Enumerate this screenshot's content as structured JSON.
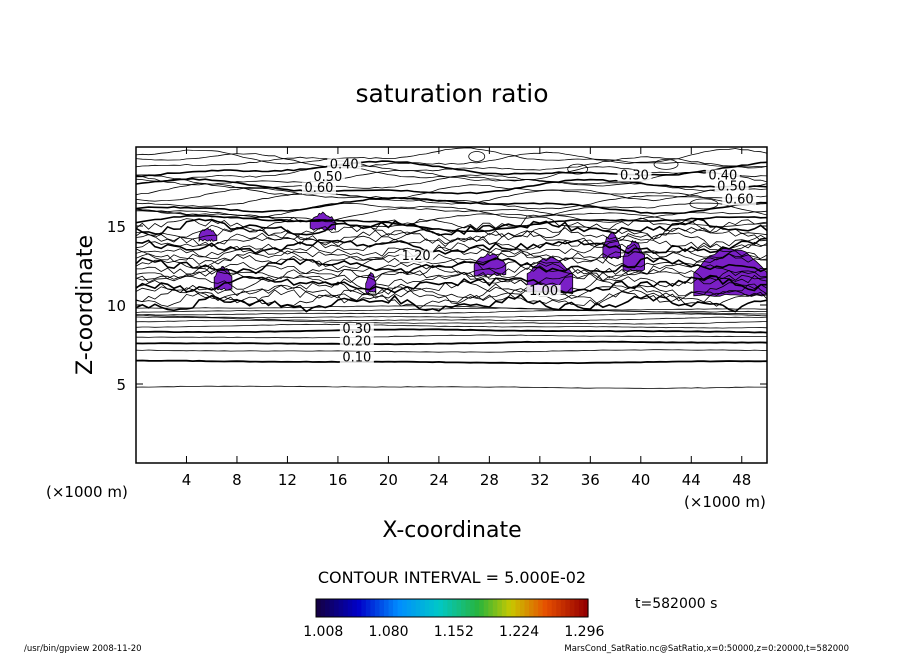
{
  "chart_data": {
    "type": "contour",
    "title": "saturation ratio",
    "xlabel": "X-coordinate",
    "ylabel": "Z-coordinate",
    "x_unit": "(×1000 m)",
    "y_unit": "(×1000 m)",
    "xlim": [
      0,
      50
    ],
    "ylim": [
      0,
      20
    ],
    "x_ticks": [
      "4",
      "8",
      "12",
      "16",
      "20",
      "24",
      "28",
      "32",
      "36",
      "40",
      "44",
      "48"
    ],
    "x_tick_values": [
      4,
      8,
      12,
      16,
      20,
      24,
      28,
      32,
      36,
      40,
      44,
      48
    ],
    "y_ticks": [
      "5",
      "10",
      "15"
    ],
    "y_tick_values": [
      5,
      10,
      15
    ],
    "contour_interval_text": "CONTOUR INTERVAL = 5.000E-02",
    "contour_labels": [
      {
        "text": "0.10",
        "x": 17.5,
        "z": 6.5
      },
      {
        "text": "0.20",
        "x": 17.5,
        "z": 7.5
      },
      {
        "text": "0.30",
        "x": 17.5,
        "z": 8.3
      },
      {
        "text": "0.40",
        "x": 16.5,
        "z": 18.7
      },
      {
        "text": "0.50",
        "x": 15.2,
        "z": 17.9
      },
      {
        "text": "0.60",
        "x": 14.5,
        "z": 17.2
      },
      {
        "text": "0.30",
        "x": 39.5,
        "z": 18.0
      },
      {
        "text": "0.40",
        "x": 46.5,
        "z": 18.0
      },
      {
        "text": "0.50",
        "x": 47.2,
        "z": 17.3
      },
      {
        "text": "0.60",
        "x": 47.8,
        "z": 16.5
      },
      {
        "text": "1.00",
        "x": 32.3,
        "z": 10.7
      },
      {
        "text": "1.20",
        "x": 22.2,
        "z": 12.9
      }
    ],
    "supersaturated_regions_x": [
      [
        5,
        7
      ],
      [
        14,
        16
      ],
      [
        6,
        7.5
      ],
      [
        29,
        34
      ],
      [
        35,
        40
      ],
      [
        44,
        50
      ],
      [
        18,
        19
      ],
      [
        26,
        29
      ]
    ],
    "colorbar": {
      "ticks": [
        "1.008",
        "1.080",
        "1.152",
        "1.224",
        "1.296"
      ],
      "tick_values": [
        1.008,
        1.08,
        1.152,
        1.224,
        1.296
      ],
      "range": [
        1.0,
        1.3
      ]
    },
    "time_label": "t=582000  s",
    "footer_left": "/usr/bin/gpview   2008-11-20",
    "footer_right": "MarsCond_SatRatio.nc@SatRatio,x=0:50000,z=0:20000,t=582000"
  },
  "colors": {
    "fill": "#7a1fc6",
    "line": "#000000",
    "background": "#ffffff"
  }
}
